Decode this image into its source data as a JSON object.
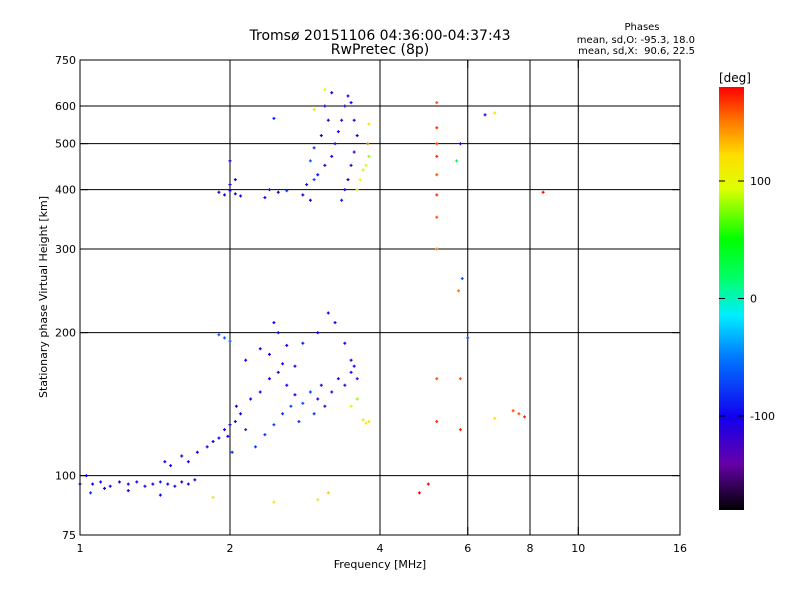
{
  "chart_data": {
    "type": "scatter",
    "title": "Tromsø 20151106 04:36:00-04:37:43",
    "subtitle": "RwPretec (8p)",
    "xlabel": "Frequency [MHz]",
    "ylabel": "Stationary phase Virtual Height [km]",
    "x_scale": "log",
    "y_scale": "log",
    "xlim": [
      1,
      16
    ],
    "ylim": [
      75,
      750
    ],
    "x_ticks": [
      1,
      2,
      4,
      6,
      8,
      10,
      16
    ],
    "x_tick_labels": [
      "1",
      "2",
      "4",
      "6",
      "8",
      "10",
      "16"
    ],
    "y_ticks": [
      75,
      100,
      200,
      300,
      400,
      500,
      600,
      750
    ],
    "y_tick_labels": [
      "75",
      "100",
      "200",
      "300",
      "400",
      "500",
      "600",
      "750"
    ],
    "grid": true,
    "phase_stats": {
      "heading": "Phases",
      "line_o": "mean, sd,O: -95.3, 18.0",
      "line_x": "mean, sd,X:  90.6, 22.5"
    },
    "colorbar": {
      "label": "[deg]",
      "range": [
        -180,
        180
      ],
      "ticks": [
        100,
        0,
        -100
      ],
      "tick_labels": [
        "100",
        "0",
        "-100"
      ]
    },
    "series": [
      {
        "points": [
          [
            1.0,
            96,
            -95
          ],
          [
            1.03,
            100,
            -100
          ],
          [
            1.06,
            96,
            -100
          ],
          [
            1.1,
            97,
            -105
          ],
          [
            1.15,
            95,
            -95
          ],
          [
            1.2,
            97,
            -100
          ],
          [
            1.25,
            96,
            -110
          ],
          [
            1.3,
            97,
            -100
          ],
          [
            1.35,
            95,
            -105
          ],
          [
            1.4,
            96,
            -100
          ],
          [
            1.45,
            97,
            -90
          ],
          [
            1.5,
            96,
            -100
          ],
          [
            1.55,
            95,
            -95
          ],
          [
            1.6,
            97,
            -100
          ],
          [
            1.65,
            96,
            -105
          ],
          [
            1.7,
            98,
            -100
          ],
          [
            1.05,
            92,
            -80
          ],
          [
            1.12,
            94,
            -100
          ],
          [
            1.25,
            93,
            -100
          ],
          [
            1.45,
            91,
            -100
          ],
          [
            1.48,
            107,
            -100
          ],
          [
            1.52,
            105,
            -95
          ],
          [
            1.6,
            110,
            -100
          ],
          [
            1.65,
            107,
            -105
          ],
          [
            1.72,
            112,
            -100
          ],
          [
            1.8,
            115,
            -95
          ],
          [
            1.85,
            118,
            -100
          ],
          [
            1.9,
            120,
            -100
          ],
          [
            1.95,
            125,
            -105
          ],
          [
            2.0,
            128,
            -100
          ],
          [
            2.05,
            130,
            -95
          ],
          [
            2.1,
            135,
            -100
          ],
          [
            1.98,
            121,
            -100
          ],
          [
            2.02,
            112,
            -80
          ],
          [
            2.06,
            140,
            -100
          ],
          [
            2.15,
            125,
            -80
          ],
          [
            2.2,
            145,
            -100
          ],
          [
            2.25,
            115,
            -75
          ],
          [
            2.3,
            150,
            -100
          ],
          [
            2.35,
            122,
            -80
          ],
          [
            2.4,
            160,
            -100
          ],
          [
            2.45,
            128,
            -75
          ],
          [
            2.5,
            165,
            -105
          ],
          [
            2.55,
            135,
            -80
          ],
          [
            2.6,
            155,
            -100
          ],
          [
            2.65,
            140,
            -75
          ],
          [
            2.7,
            148,
            -100
          ],
          [
            2.75,
            130,
            -80
          ],
          [
            2.8,
            142,
            -70
          ],
          [
            2.9,
            150,
            -75
          ],
          [
            2.95,
            135,
            -80
          ],
          [
            3.0,
            145,
            -110
          ],
          [
            3.05,
            155,
            -110
          ],
          [
            3.1,
            140,
            -120
          ],
          [
            3.2,
            150,
            -120
          ],
          [
            3.3,
            160,
            -115
          ],
          [
            3.4,
            155,
            -120
          ],
          [
            3.5,
            165,
            -110
          ],
          [
            3.55,
            170,
            -100
          ],
          [
            3.6,
            160,
            -130
          ],
          [
            2.15,
            175,
            -100
          ],
          [
            2.3,
            185,
            -100
          ],
          [
            2.4,
            180,
            -105
          ],
          [
            2.45,
            210,
            -100
          ],
          [
            2.5,
            200,
            -100
          ],
          [
            2.55,
            172,
            -95
          ],
          [
            2.6,
            188,
            -100
          ],
          [
            2.7,
            170,
            -100
          ],
          [
            2.8,
            190,
            -90
          ],
          [
            3.0,
            200,
            -100
          ],
          [
            3.15,
            220,
            -100
          ],
          [
            3.25,
            210,
            -100
          ],
          [
            3.4,
            190,
            -100
          ],
          [
            3.5,
            175,
            -110
          ],
          [
            1.9,
            198,
            -60
          ],
          [
            1.95,
            195,
            -60
          ],
          [
            2.0,
            192,
            -60
          ],
          [
            3.8,
            130,
            120
          ],
          [
            3.7,
            131,
            120
          ],
          [
            3.75,
            129,
            110
          ],
          [
            3.6,
            145,
            80
          ],
          [
            3.5,
            140,
            100
          ],
          [
            1.85,
            90,
            120
          ],
          [
            2.45,
            88,
            120
          ],
          [
            3.0,
            89,
            110
          ],
          [
            3.15,
            92,
            130
          ],
          [
            4.8,
            92,
            180
          ],
          [
            5.0,
            96,
            180
          ],
          [
            1.9,
            395,
            -100
          ],
          [
            1.95,
            390,
            -100
          ],
          [
            2.0,
            398,
            -100
          ],
          [
            2.05,
            392,
            -100
          ],
          [
            2.1,
            388,
            -95
          ],
          [
            2.0,
            410,
            -100
          ],
          [
            2.05,
            420,
            -100
          ],
          [
            2.0,
            460,
            -100
          ],
          [
            2.4,
            400,
            -90
          ],
          [
            2.5,
            395,
            -100
          ],
          [
            2.6,
            398,
            -80
          ],
          [
            2.35,
            385,
            -100
          ],
          [
            2.8,
            390,
            -100
          ],
          [
            2.9,
            380,
            -100
          ],
          [
            2.85,
            410,
            -90
          ],
          [
            2.95,
            420,
            -70
          ],
          [
            3.0,
            430,
            -100
          ],
          [
            3.1,
            450,
            -120
          ],
          [
            3.2,
            470,
            -110
          ],
          [
            3.25,
            500,
            -120
          ],
          [
            3.3,
            530,
            -110
          ],
          [
            3.35,
            560,
            -120
          ],
          [
            3.4,
            600,
            -110
          ],
          [
            3.45,
            630,
            -100
          ],
          [
            3.1,
            600,
            -100
          ],
          [
            3.15,
            560,
            -110
          ],
          [
            3.05,
            520,
            -100
          ],
          [
            2.95,
            490,
            -80
          ],
          [
            2.9,
            460,
            -60
          ],
          [
            3.2,
            640,
            -100
          ],
          [
            3.5,
            610,
            -100
          ],
          [
            3.55,
            560,
            -110
          ],
          [
            3.6,
            520,
            -100
          ],
          [
            3.55,
            480,
            -120
          ],
          [
            3.5,
            450,
            -110
          ],
          [
            3.45,
            420,
            -100
          ],
          [
            3.4,
            400,
            -110
          ],
          [
            3.35,
            380,
            -90
          ],
          [
            3.7,
            440,
            90
          ],
          [
            3.75,
            450,
            100
          ],
          [
            3.8,
            470,
            80
          ],
          [
            3.65,
            420,
            100
          ],
          [
            3.6,
            400,
            110
          ],
          [
            3.8,
            550,
            120
          ],
          [
            3.78,
            500,
            150
          ],
          [
            3.1,
            650,
            100
          ],
          [
            2.95,
            590,
            110
          ],
          [
            2.45,
            565,
            -90
          ],
          [
            5.2,
            610,
            160
          ],
          [
            5.2,
            540,
            170
          ],
          [
            5.2,
            500,
            160
          ],
          [
            5.2,
            470,
            170
          ],
          [
            5.2,
            430,
            160
          ],
          [
            5.2,
            390,
            170
          ],
          [
            5.2,
            350,
            160
          ],
          [
            5.2,
            300,
            150
          ],
          [
            5.2,
            160,
            160
          ],
          [
            5.2,
            130,
            170
          ],
          [
            5.8,
            500,
            -110
          ],
          [
            5.7,
            460,
            30
          ],
          [
            6.5,
            575,
            -120
          ],
          [
            6.8,
            580,
            120
          ],
          [
            5.85,
            260,
            -60
          ],
          [
            5.75,
            245,
            150
          ],
          [
            6.0,
            195,
            -60
          ],
          [
            5.8,
            160,
            160
          ],
          [
            5.8,
            125,
            170
          ],
          [
            7.4,
            137,
            160
          ],
          [
            7.6,
            135,
            160
          ],
          [
            8.5,
            395,
            180
          ],
          [
            7.8,
            133,
            170
          ],
          [
            6.8,
            132,
            120
          ]
        ]
      }
    ]
  }
}
